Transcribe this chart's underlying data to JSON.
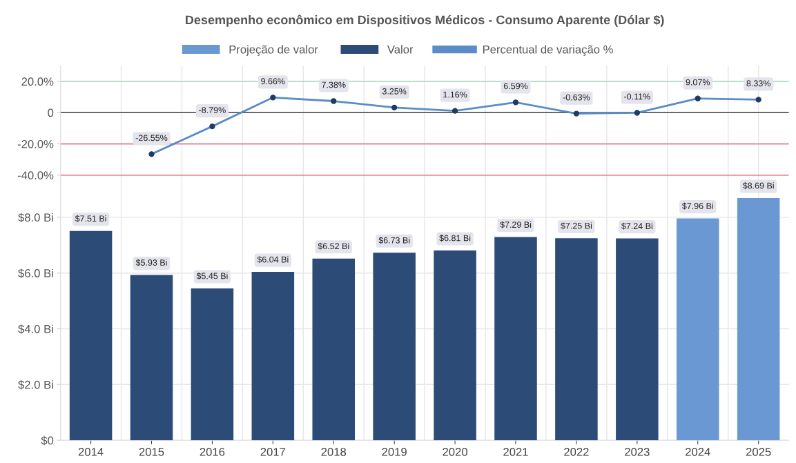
{
  "chart_data": [
    {
      "type": "line",
      "title": "Desempenho econômico em Dispositivos Médicos - Consumo Aparente (Dólar $)",
      "categories": [
        "2014",
        "2015",
        "2016",
        "2017",
        "2018",
        "2019",
        "2020",
        "2021",
        "2022",
        "2023",
        "2024",
        "2025"
      ],
      "series": [
        {
          "name": "Percentual de variação %",
          "color": "#5b8cc9",
          "values": [
            null,
            -26.55,
            -8.79,
            9.66,
            7.38,
            3.25,
            1.16,
            6.59,
            -0.63,
            -0.11,
            9.07,
            8.33
          ],
          "value_labels": [
            null,
            "-26.55%",
            "-8.79%",
            "9.66%",
            "7.38%",
            "3.25%",
            "1.16%",
            "6.59%",
            "-0.63%",
            "-0.11%",
            "9.07%",
            "8.33%"
          ]
        }
      ],
      "ylim": [
        -42,
        30
      ],
      "yticks": [
        {
          "value": -40,
          "label": "-40.0%"
        },
        {
          "value": -20,
          "label": "-20.0%"
        },
        0,
        {
          "value": 20,
          "label": "20.0%"
        }
      ],
      "ref_lines": [
        {
          "axis": "y",
          "value": 20,
          "color": "#a8dcc0"
        },
        {
          "axis": "y",
          "value": 0,
          "color": "#555555"
        },
        {
          "axis": "y",
          "value": -20,
          "color": "#e38c98"
        },
        {
          "axis": "y",
          "value": -40,
          "color": "#e38c98"
        }
      ],
      "marker": "circle",
      "line_style": "solid",
      "grid": "x",
      "tick_labels": "y",
      "legend": "top"
    },
    {
      "type": "bar",
      "categories": [
        "2014",
        "2015",
        "2016",
        "2017",
        "2018",
        "2019",
        "2020",
        "2021",
        "2022",
        "2023",
        "2024",
        "2025"
      ],
      "series": [
        {
          "name": "Projeção de valor",
          "color": "#6a98d2",
          "values": [
            null,
            null,
            null,
            null,
            null,
            null,
            null,
            null,
            null,
            null,
            7.96,
            8.69
          ],
          "value_labels": [
            null,
            null,
            null,
            null,
            null,
            null,
            null,
            null,
            null,
            null,
            "$7.96 Bi",
            "$8.69 Bi"
          ]
        },
        {
          "name": "Valor",
          "color": "#2c4b77",
          "values": [
            7.51,
            5.93,
            5.45,
            6.04,
            6.52,
            6.73,
            6.81,
            7.29,
            7.25,
            7.24,
            null,
            null
          ],
          "value_labels": [
            "$7.51 Bi",
            "$5.93 Bi",
            "$5.45 Bi",
            "$6.04 Bi",
            "$6.52 Bi",
            "$6.73 Bi",
            "$6.81 Bi",
            "$7.29 Bi",
            "$7.25 Bi",
            "$7.24 Bi",
            null,
            null
          ]
        }
      ],
      "ylim": [
        0,
        9.4
      ],
      "yticks": [
        {
          "value": 0,
          "label": "$0"
        },
        {
          "value": 2,
          "label": "$2.0 Bi"
        },
        {
          "value": 4,
          "label": "$4.0 Bi"
        },
        {
          "value": 6,
          "label": "$6.0 Bi"
        },
        {
          "value": 8,
          "label": "$8.0 Bi"
        }
      ],
      "grid": true,
      "legend": "top"
    }
  ]
}
